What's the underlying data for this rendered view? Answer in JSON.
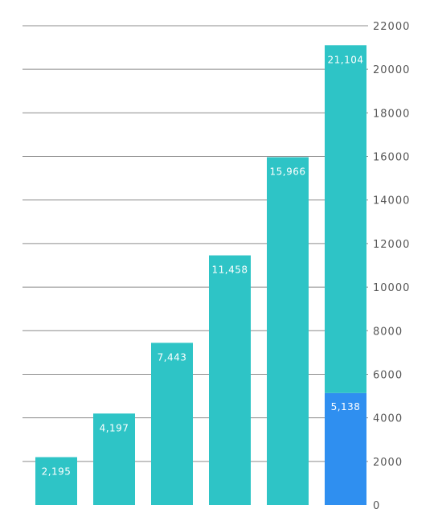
{
  "chart_data": {
    "type": "bar",
    "stacked": true,
    "categories": [
      "",
      "",
      "",
      "",
      "",
      ""
    ],
    "series": [
      {
        "values": [
          2195,
          4197,
          7443,
          11458,
          15966,
          5138
        ],
        "color": "#2ec4c6"
      },
      {
        "values": [
          0,
          0,
          0,
          0,
          0,
          15966
        ],
        "color": "#2ec4c6"
      }
    ],
    "highlight": {
      "index": 5,
      "color": "#2f8ff0"
    },
    "data_labels": [
      "2,195",
      "4,197",
      "7,443",
      "11,458",
      "15,966",
      "21,104",
      "5,138"
    ],
    "y_ticks": [
      "0",
      "2000",
      "4000",
      "6000",
      "8000",
      "10000",
      "12000",
      "14000",
      "16000",
      "18000",
      "20000",
      "22000"
    ],
    "ylim": [
      0,
      22000
    ],
    "y_axis_side": "right",
    "grid": true,
    "title": "",
    "xlabel": "",
    "ylabel": ""
  }
}
